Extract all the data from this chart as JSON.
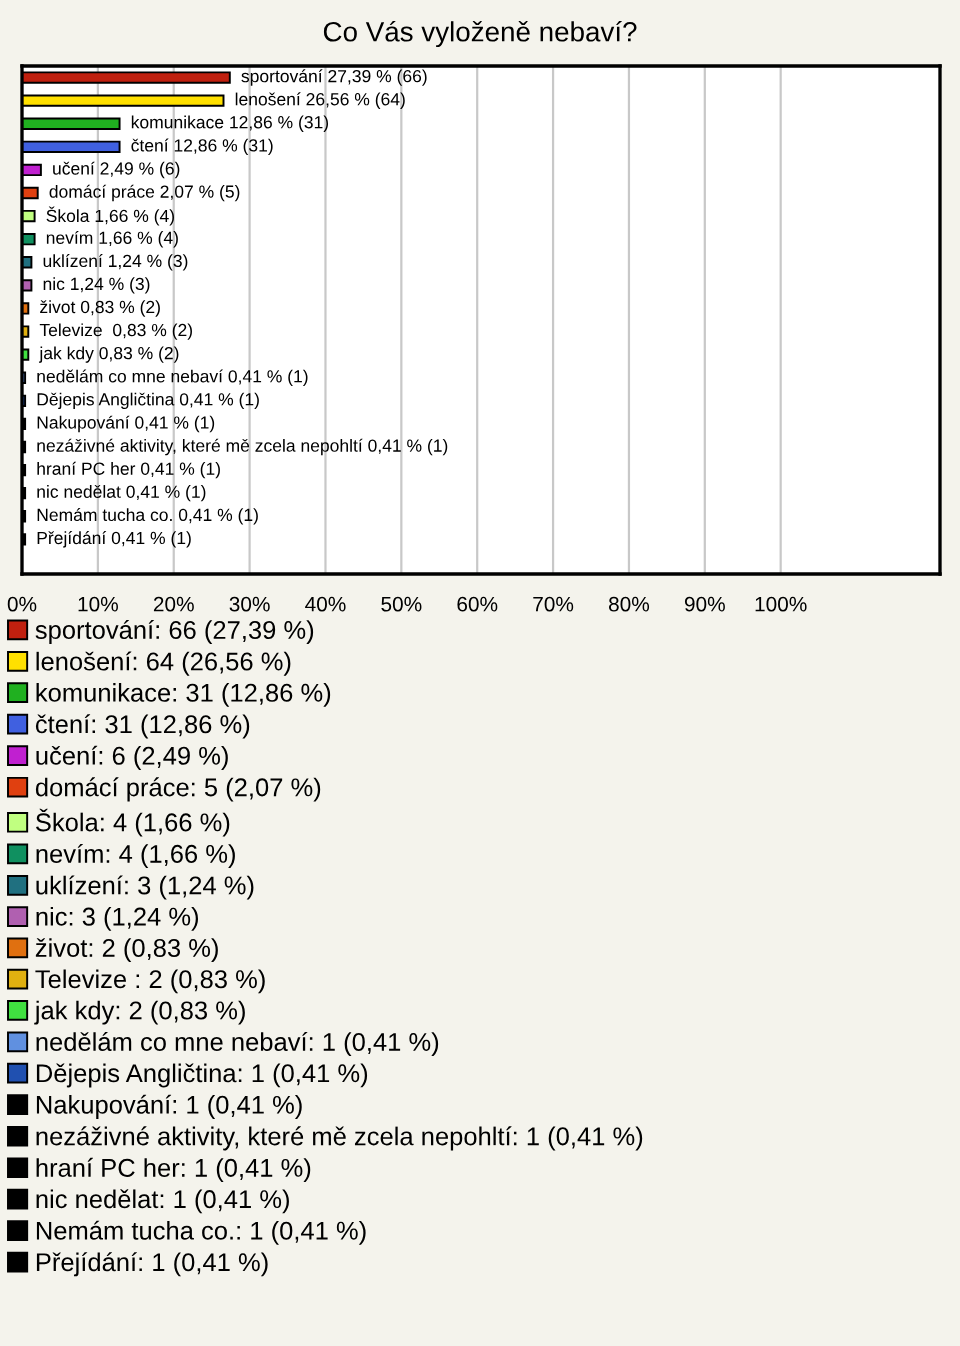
{
  "chart_data": {
    "type": "bar",
    "orientation": "horizontal",
    "title": "Co Vás vyloženě nebaví?",
    "categories": [
      null,
      null,
      null,
      null,
      null,
      null,
      null,
      null,
      null,
      null,
      null,
      null,
      null,
      null,
      null,
      null,
      null,
      null,
      null,
      null,
      null,
      null
    ],
    "series": [
      {
        "name": "sportování: 66 (27,39 %)",
        "color": "#c0200f",
        "values": [
          27.39,
          null,
          null,
          null,
          null,
          null,
          null,
          null,
          null,
          null,
          null,
          null,
          null,
          null,
          null,
          null,
          null,
          null,
          null,
          null,
          null,
          null
        ],
        "value_labels": [
          "sportování 27,39 % (66)",
          null,
          null,
          null,
          null,
          null,
          null,
          null,
          null,
          null,
          null,
          null,
          null,
          null,
          null,
          null,
          null,
          null,
          null,
          null,
          null,
          null
        ]
      },
      {
        "name": "lenošení: 64 (26,56 %)",
        "color": "#ffe000",
        "values": [
          null,
          26.56,
          null,
          null,
          null,
          null,
          null,
          null,
          null,
          null,
          null,
          null,
          null,
          null,
          null,
          null,
          null,
          null,
          null,
          null,
          null,
          null
        ],
        "value_labels": [
          null,
          "lenošení 26,56 % (64)",
          null,
          null,
          null,
          null,
          null,
          null,
          null,
          null,
          null,
          null,
          null,
          null,
          null,
          null,
          null,
          null,
          null,
          null,
          null,
          null
        ]
      },
      {
        "name": "komunikace: 31 (12,86 %)",
        "color": "#20b020",
        "values": [
          null,
          null,
          12.86,
          null,
          null,
          null,
          null,
          null,
          null,
          null,
          null,
          null,
          null,
          null,
          null,
          null,
          null,
          null,
          null,
          null,
          null,
          null
        ],
        "value_labels": [
          null,
          null,
          "komunikace 12,86 % (31)",
          null,
          null,
          null,
          null,
          null,
          null,
          null,
          null,
          null,
          null,
          null,
          null,
          null,
          null,
          null,
          null,
          null,
          null,
          null
        ]
      },
      {
        "name": "čtení: 31 (12,86 %)",
        "color": "#4060e0",
        "values": [
          null,
          null,
          null,
          12.86,
          null,
          null,
          null,
          null,
          null,
          null,
          null,
          null,
          null,
          null,
          null,
          null,
          null,
          null,
          null,
          null,
          null,
          null
        ],
        "value_labels": [
          null,
          null,
          null,
          "čtení 12,86 % (31)",
          null,
          null,
          null,
          null,
          null,
          null,
          null,
          null,
          null,
          null,
          null,
          null,
          null,
          null,
          null,
          null,
          null,
          null
        ]
      },
      {
        "name": "učení: 6 (2,49 %)",
        "color": "#c020d0",
        "values": [
          null,
          null,
          null,
          null,
          2.49,
          null,
          null,
          null,
          null,
          null,
          null,
          null,
          null,
          null,
          null,
          null,
          null,
          null,
          null,
          null,
          null,
          null
        ],
        "value_labels": [
          null,
          null,
          null,
          null,
          "učení 2,49 % (6)",
          null,
          null,
          null,
          null,
          null,
          null,
          null,
          null,
          null,
          null,
          null,
          null,
          null,
          null,
          null,
          null,
          null
        ]
      },
      {
        "name": "domácí práce: 5 (2,07 %)",
        "color": "#e04010",
        "values": [
          null,
          null,
          null,
          null,
          null,
          2.07,
          null,
          null,
          null,
          null,
          null,
          null,
          null,
          null,
          null,
          null,
          null,
          null,
          null,
          null,
          null,
          null
        ],
        "value_labels": [
          null,
          null,
          null,
          null,
          null,
          "domácí práce 2,07 % (5)",
          null,
          null,
          null,
          null,
          null,
          null,
          null,
          null,
          null,
          null,
          null,
          null,
          null,
          null,
          null,
          null
        ]
      },
      {
        "name": "Škola: 4 (1,66 %)",
        "color": "#c0ff80",
        "values": [
          null,
          null,
          null,
          null,
          null,
          null,
          1.66,
          null,
          null,
          null,
          null,
          null,
          null,
          null,
          null,
          null,
          null,
          null,
          null,
          null,
          null,
          null
        ],
        "value_labels": [
          null,
          null,
          null,
          null,
          null,
          null,
          "Škola 1,66 % (4)",
          null,
          null,
          null,
          null,
          null,
          null,
          null,
          null,
          null,
          null,
          null,
          null,
          null,
          null,
          null
        ]
      },
      {
        "name": "nevím: 4 (1,66 %)",
        "color": "#109060",
        "values": [
          null,
          null,
          null,
          null,
          null,
          null,
          null,
          1.66,
          null,
          null,
          null,
          null,
          null,
          null,
          null,
          null,
          null,
          null,
          null,
          null,
          null,
          null
        ],
        "value_labels": [
          null,
          null,
          null,
          null,
          null,
          null,
          null,
          "nevím 1,66 % (4)",
          null,
          null,
          null,
          null,
          null,
          null,
          null,
          null,
          null,
          null,
          null,
          null,
          null,
          null
        ]
      },
      {
        "name": "uklízení: 3 (1,24 %)",
        "color": "#207080",
        "values": [
          null,
          null,
          null,
          null,
          null,
          null,
          null,
          null,
          1.24,
          null,
          null,
          null,
          null,
          null,
          null,
          null,
          null,
          null,
          null,
          null,
          null,
          null
        ],
        "value_labels": [
          null,
          null,
          null,
          null,
          null,
          null,
          null,
          null,
          "uklízení 1,24 % (3)",
          null,
          null,
          null,
          null,
          null,
          null,
          null,
          null,
          null,
          null,
          null,
          null,
          null
        ]
      },
      {
        "name": "nic: 3 (1,24 %)",
        "color": "#b060b0",
        "values": [
          null,
          null,
          null,
          null,
          null,
          null,
          null,
          null,
          null,
          1.24,
          null,
          null,
          null,
          null,
          null,
          null,
          null,
          null,
          null,
          null,
          null,
          null
        ],
        "value_labels": [
          null,
          null,
          null,
          null,
          null,
          null,
          null,
          null,
          null,
          "nic 1,24 % (3)",
          null,
          null,
          null,
          null,
          null,
          null,
          null,
          null,
          null,
          null,
          null,
          null
        ]
      },
      {
        "name": "život: 2 (0,83 %)",
        "color": "#e07010",
        "values": [
          null,
          null,
          null,
          null,
          null,
          null,
          null,
          null,
          null,
          null,
          0.83,
          null,
          null,
          null,
          null,
          null,
          null,
          null,
          null,
          null,
          null,
          null
        ],
        "value_labels": [
          null,
          null,
          null,
          null,
          null,
          null,
          null,
          null,
          null,
          null,
          "život 0,83 % (2)",
          null,
          null,
          null,
          null,
          null,
          null,
          null,
          null,
          null,
          null,
          null
        ]
      },
      {
        "name": "Televize : 2 (0,83 %)",
        "color": "#e0b010",
        "values": [
          null,
          null,
          null,
          null,
          null,
          null,
          null,
          null,
          null,
          null,
          null,
          0.83,
          null,
          null,
          null,
          null,
          null,
          null,
          null,
          null,
          null,
          null
        ],
        "value_labels": [
          null,
          null,
          null,
          null,
          null,
          null,
          null,
          null,
          null,
          null,
          null,
          "Televize  0,83 % (2)",
          null,
          null,
          null,
          null,
          null,
          null,
          null,
          null,
          null,
          null
        ]
      },
      {
        "name": "jak kdy: 2 (0,83 %)",
        "color": "#40e040",
        "values": [
          null,
          null,
          null,
          null,
          null,
          null,
          null,
          null,
          null,
          null,
          null,
          null,
          0.83,
          null,
          null,
          null,
          null,
          null,
          null,
          null,
          null,
          null
        ],
        "value_labels": [
          null,
          null,
          null,
          null,
          null,
          null,
          null,
          null,
          null,
          null,
          null,
          null,
          "jak kdy 0,83 % (2)",
          null,
          null,
          null,
          null,
          null,
          null,
          null,
          null,
          null
        ]
      },
      {
        "name": "nedělám co mne nebaví: 1 (0,41 %)",
        "color": "#6090e0",
        "values": [
          null,
          null,
          null,
          null,
          null,
          null,
          null,
          null,
          null,
          null,
          null,
          null,
          null,
          0.41,
          null,
          null,
          null,
          null,
          null,
          null,
          null,
          null
        ],
        "value_labels": [
          null,
          null,
          null,
          null,
          null,
          null,
          null,
          null,
          null,
          null,
          null,
          null,
          null,
          "nedělám co mne nebaví 0,41 % (1)",
          null,
          null,
          null,
          null,
          null,
          null,
          null,
          null
        ]
      },
      {
        "name": "Dějepis Angličtina: 1 (0,41 %)",
        "color": "#2050b0",
        "values": [
          null,
          null,
          null,
          null,
          null,
          null,
          null,
          null,
          null,
          null,
          null,
          null,
          null,
          null,
          0.41,
          null,
          null,
          null,
          null,
          null,
          null,
          null
        ],
        "value_labels": [
          null,
          null,
          null,
          null,
          null,
          null,
          null,
          null,
          null,
          null,
          null,
          null,
          null,
          null,
          "Dějepis Angličtina 0,41 % (1)",
          null,
          null,
          null,
          null,
          null,
          null,
          null
        ]
      },
      {
        "name": "Nakupování: 1 (0,41 %)",
        "color": "#000000",
        "values": [
          null,
          null,
          null,
          null,
          null,
          null,
          null,
          null,
          null,
          null,
          null,
          null,
          null,
          null,
          null,
          0.41,
          null,
          null,
          null,
          null,
          null,
          null
        ],
        "value_labels": [
          null,
          null,
          null,
          null,
          null,
          null,
          null,
          null,
          null,
          null,
          null,
          null,
          null,
          null,
          null,
          "Nakupování 0,41 % (1)",
          null,
          null,
          null,
          null,
          null,
          null
        ]
      },
      {
        "name": "nezáživné aktivity, které mě zcela nepohltí: 1 (0,41 %)",
        "color": "#000000",
        "values": [
          null,
          null,
          null,
          null,
          null,
          null,
          null,
          null,
          null,
          null,
          null,
          null,
          null,
          null,
          null,
          null,
          0.41,
          null,
          null,
          null,
          null,
          null
        ],
        "value_labels": [
          null,
          null,
          null,
          null,
          null,
          null,
          null,
          null,
          null,
          null,
          null,
          null,
          null,
          null,
          null,
          null,
          "nezáživné aktivity, které mě zcela nepohltí 0,41 % (1)",
          null,
          null,
          null,
          null,
          null
        ]
      },
      {
        "name": "hraní PC her: 1 (0,41 %)",
        "color": "#000000",
        "values": [
          null,
          null,
          null,
          null,
          null,
          null,
          null,
          null,
          null,
          null,
          null,
          null,
          null,
          null,
          null,
          null,
          null,
          0.41,
          null,
          null,
          null,
          null
        ],
        "value_labels": [
          null,
          null,
          null,
          null,
          null,
          null,
          null,
          null,
          null,
          null,
          null,
          null,
          null,
          null,
          null,
          null,
          null,
          "hraní PC her 0,41 % (1)",
          null,
          null,
          null,
          null
        ]
      },
      {
        "name": "nic nedělat: 1 (0,41 %)",
        "color": "#000000",
        "values": [
          null,
          null,
          null,
          null,
          null,
          null,
          null,
          null,
          null,
          null,
          null,
          null,
          null,
          null,
          null,
          null,
          null,
          null,
          0.41,
          null,
          null,
          null
        ],
        "value_labels": [
          null,
          null,
          null,
          null,
          null,
          null,
          null,
          null,
          null,
          null,
          null,
          null,
          null,
          null,
          null,
          null,
          null,
          null,
          "nic nedělat 0,41 % (1)",
          null,
          null,
          null
        ]
      },
      {
        "name": "Nemám tucha co.: 1 (0,41 %)",
        "color": "#000000",
        "values": [
          null,
          null,
          null,
          null,
          null,
          null,
          null,
          null,
          null,
          null,
          null,
          null,
          null,
          null,
          null,
          null,
          null,
          null,
          null,
          0.41,
          null,
          null
        ],
        "value_labels": [
          null,
          null,
          null,
          null,
          null,
          null,
          null,
          null,
          null,
          null,
          null,
          null,
          null,
          null,
          null,
          null,
          null,
          null,
          null,
          "Nemám tucha co. 0,41 % (1)",
          null,
          null
        ]
      },
      {
        "name": "Přejídání: 1 (0,41 %)",
        "color": "#000000",
        "values": [
          null,
          null,
          null,
          null,
          null,
          null,
          null,
          null,
          null,
          null,
          null,
          null,
          null,
          null,
          null,
          null,
          null,
          null,
          null,
          null,
          0.41,
          null
        ],
        "value_labels": [
          null,
          null,
          null,
          null,
          null,
          null,
          null,
          null,
          null,
          null,
          null,
          null,
          null,
          null,
          null,
          null,
          null,
          null,
          null,
          null,
          "Přejídání 0,41 % (1)",
          null
        ]
      }
    ],
    "xlim": [
      0,
      121
    ],
    "xticks": [
      {
        "value": 0,
        "label": "0%"
      },
      {
        "value": 10,
        "label": "10%"
      },
      {
        "value": 20,
        "label": "20%"
      },
      {
        "value": 30,
        "label": "30%"
      },
      {
        "value": 40,
        "label": "40%"
      },
      {
        "value": 50,
        "label": "50%"
      },
      {
        "value": 60,
        "label": "60%"
      },
      {
        "value": 70,
        "label": "70%"
      },
      {
        "value": 80,
        "label": "80%"
      },
      {
        "value": 90,
        "label": "90%"
      },
      {
        "value": 100,
        "label": "100%"
      }
    ],
    "grid": "x",
    "legend": "bottom"
  }
}
